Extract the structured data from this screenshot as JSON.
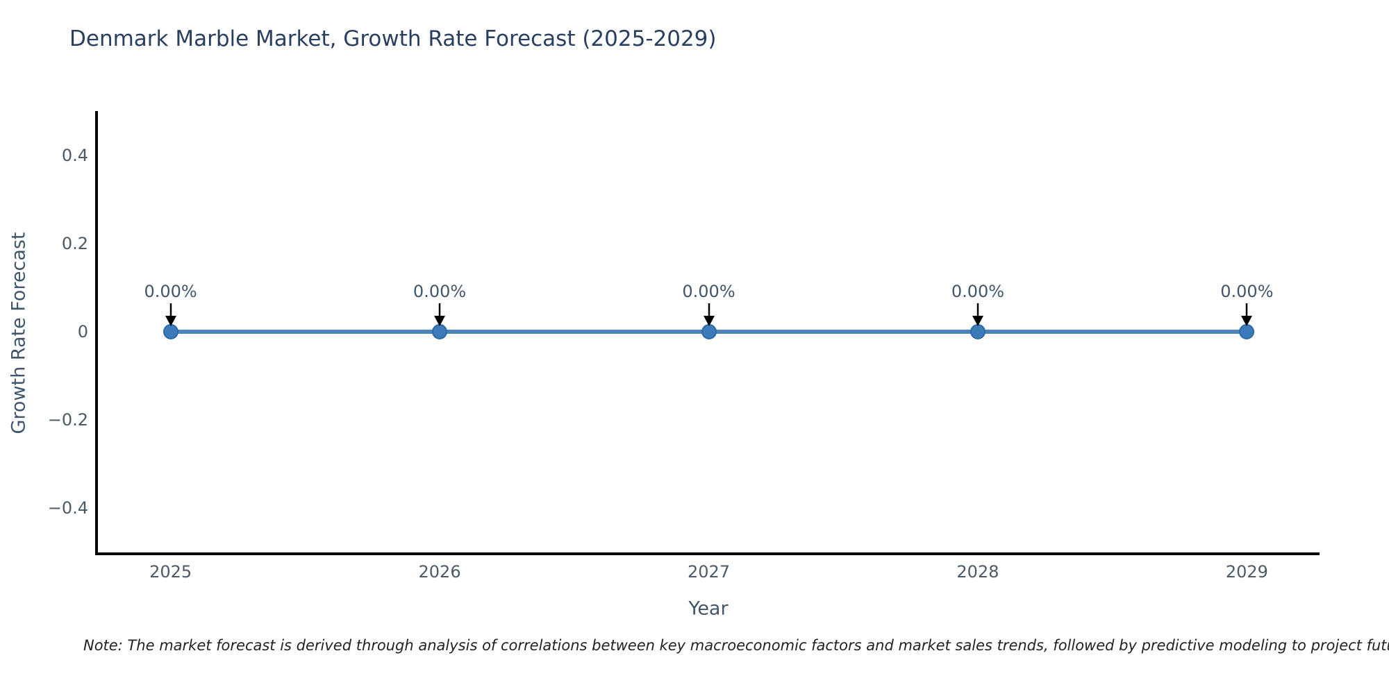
{
  "note": "Note: The market forecast is derived through analysis of correlations between key macroeconomic factors and market sales trends, followed by predictive modeling to project future sa",
  "chart_data": {
    "type": "line",
    "title": "Denmark Marble Market, Growth Rate Forecast (2025-2029)",
    "xlabel": "Year",
    "ylabel": "Growth Rate Forecast",
    "x": [
      2025,
      2026,
      2027,
      2028,
      2029
    ],
    "series": [
      {
        "name": "Growth Rate Forecast",
        "values": [
          0,
          0,
          0,
          0,
          0
        ]
      }
    ],
    "point_labels": [
      "0.00%",
      "0.00%",
      "0.00%",
      "0.00%",
      "0.00%"
    ],
    "xlim": [
      2024.73,
      2029.27
    ],
    "ylim": [
      -0.5,
      0.5
    ],
    "x_ticks": [
      {
        "value": 2025,
        "label": "2025"
      },
      {
        "value": 2026,
        "label": "2026"
      },
      {
        "value": 2027,
        "label": "2027"
      },
      {
        "value": 2028,
        "label": "2028"
      },
      {
        "value": 2029,
        "label": "2029"
      }
    ],
    "y_ticks": [
      {
        "value": 0.4,
        "label": "0.4"
      },
      {
        "value": 0.2,
        "label": "0.2"
      },
      {
        "value": 0,
        "label": "0"
      },
      {
        "value": -0.2,
        "label": "−0.2"
      },
      {
        "value": -0.4,
        "label": "−0.4"
      }
    ],
    "grid": false,
    "legend_position": "none",
    "colors": {
      "line": "#4c83b8",
      "marker_fill": "#3d7ab9",
      "marker_edge": "#2a6aa8",
      "annotation_arrow": "#000000",
      "axis_spine": "#000000",
      "title_text": "#2a3f5f",
      "axis_label_text": "#42566b",
      "tick_text": "#4c5a68",
      "note_text": "#222222",
      "background": "#ffffff"
    }
  }
}
